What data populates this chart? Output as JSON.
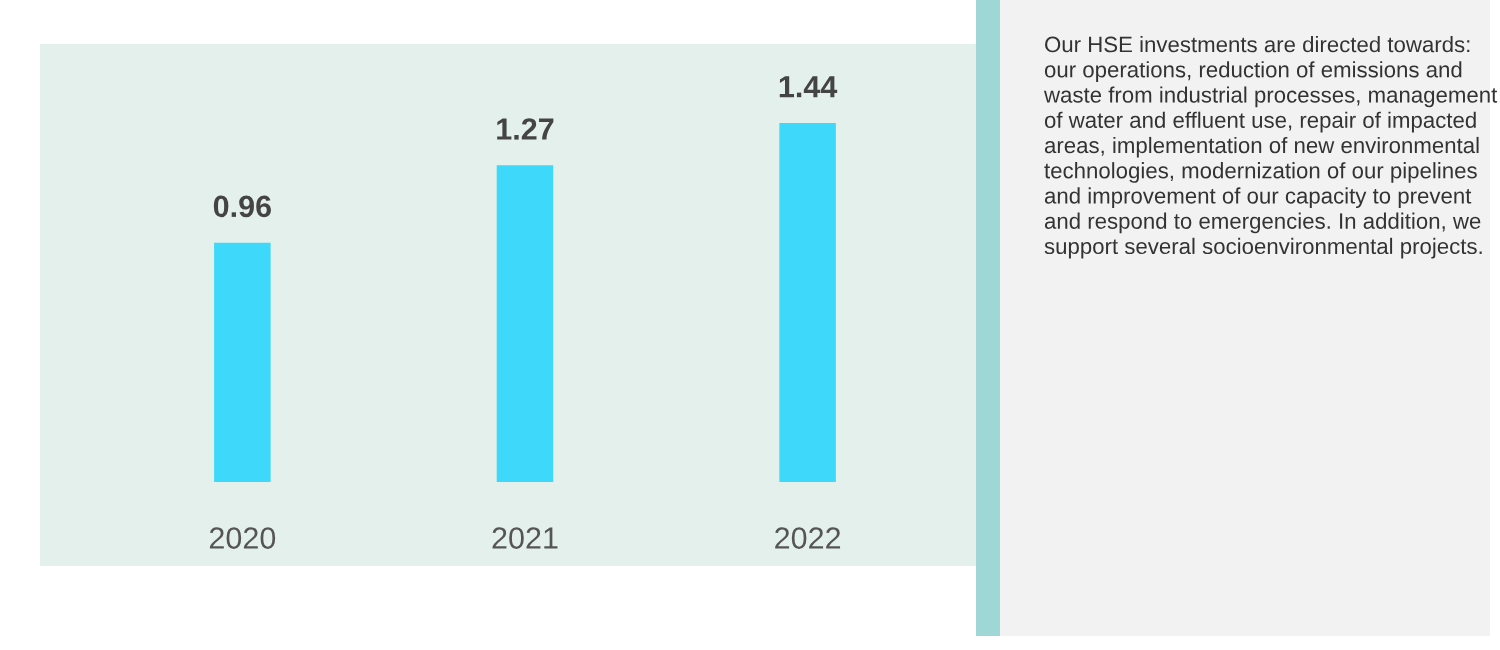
{
  "chart_data": {
    "type": "bar",
    "categories": [
      "2020",
      "2021",
      "2022"
    ],
    "values": [
      0.96,
      1.27,
      1.44
    ],
    "color": "#3dd8fa",
    "data_labels": true,
    "annotations": [
      "Our HSE investments are directed towards: our operations, reduction of emissions and waste from industrial processes, management of water and effluent use, repair of impacted areas, implementation of new environmental technologies, modernization of our pipelines and improvement of our capacity to prevent and respond to emergencies. In addition, we support several socioenvironmental projects."
    ]
  }
}
